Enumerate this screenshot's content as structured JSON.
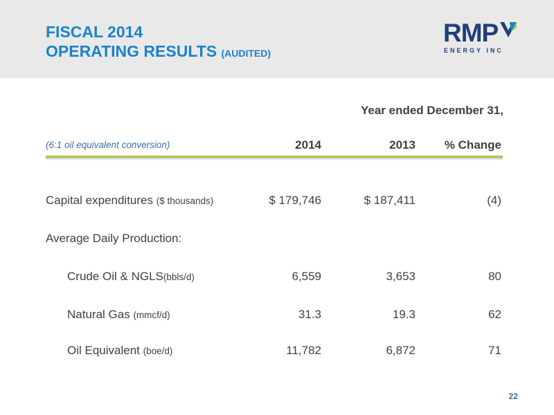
{
  "title": {
    "line1": "FISCAL 2014",
    "line2_main": "OPERATING RESULTS",
    "line2_suffix": "(AUDITED)"
  },
  "logo": {
    "wordmark": "RMP",
    "subtext": "ENERGY INC",
    "colors": {
      "navy": "#1f3f7a",
      "chevron_blue": "#1a83c6",
      "chevron_green": "#a8c84a"
    }
  },
  "table": {
    "period_heading": "Year ended December 31,",
    "conversion_note": "(6:1 oil equivalent conversion)",
    "columns": [
      "2014",
      "2013",
      "% Change"
    ],
    "rows": [
      {
        "label": "Capital expenditures",
        "unit": "($ thousands)",
        "v2014": "$ 179,746",
        "v2013": "$ 187,411",
        "change": "(4)"
      },
      {
        "label": "Average Daily Production:",
        "unit": "",
        "v2014": "",
        "v2013": "",
        "change": ""
      },
      {
        "label": "Crude Oil & NGLS",
        "unit": "(bbls/d)",
        "v2014": "6,559",
        "v2013": "3,653",
        "change": "80"
      },
      {
        "label": "Natural Gas",
        "unit": "(mmcf/d)",
        "v2014": "31.3",
        "v2013": "19.3",
        "change": "62"
      },
      {
        "label": "Oil Equivalent",
        "unit": "(boe/d)",
        "v2014": "11,782",
        "v2013": "6,872",
        "change": "71"
      }
    ]
  },
  "page_number": "22",
  "colors": {
    "title_blue": "#1a83c6",
    "header_band": "#e9e9e9",
    "rule_green": "#a8c84a",
    "note_blue": "#3b6fa8",
    "text_gray": "#404040"
  }
}
